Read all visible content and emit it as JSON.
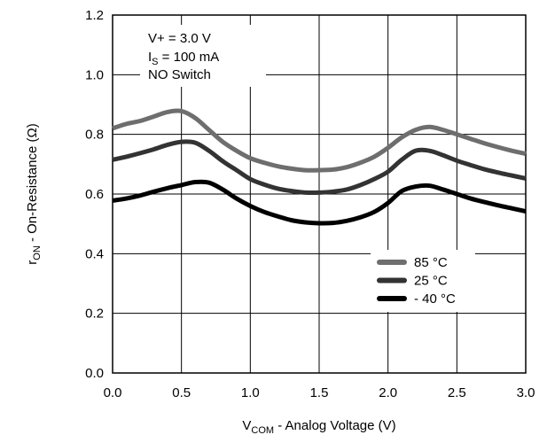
{
  "chart_data": {
    "type": "line",
    "xlabel": {
      "main": "V",
      "sub": "COM",
      "rest": " -  Analog Voltage (V)"
    },
    "ylabel": {
      "main": "r",
      "sub": "ON",
      "rest": " -   On-Resistance (Ω)"
    },
    "xlim": [
      0,
      3.0
    ],
    "ylim": [
      0,
      1.2
    ],
    "xticks": [
      "0.0",
      "0.5",
      "1.0",
      "1.5",
      "2.0",
      "2.5",
      "3.0"
    ],
    "yticks": [
      "0.0",
      "0.2",
      "0.4",
      "0.6",
      "0.8",
      "1.0",
      "1.2"
    ],
    "grid": true,
    "legend_position": "lower-right",
    "annotations": {
      "line1": "V+ = 3.0 V",
      "line2_main": "I",
      "line2_sub": "S",
      "line2_rest": " = 100 mA",
      "line3": "NO Switch"
    },
    "series": [
      {
        "name": "85 °C",
        "color": "#6e6e6e",
        "points": [
          [
            0.0,
            0.82
          ],
          [
            0.1,
            0.835
          ],
          [
            0.2,
            0.845
          ],
          [
            0.3,
            0.86
          ],
          [
            0.4,
            0.875
          ],
          [
            0.5,
            0.878
          ],
          [
            0.6,
            0.855
          ],
          [
            0.7,
            0.815
          ],
          [
            0.8,
            0.775
          ],
          [
            0.9,
            0.745
          ],
          [
            1.0,
            0.72
          ],
          [
            1.1,
            0.705
          ],
          [
            1.2,
            0.693
          ],
          [
            1.3,
            0.685
          ],
          [
            1.4,
            0.68
          ],
          [
            1.5,
            0.68
          ],
          [
            1.6,
            0.682
          ],
          [
            1.7,
            0.69
          ],
          [
            1.8,
            0.705
          ],
          [
            1.9,
            0.725
          ],
          [
            2.0,
            0.755
          ],
          [
            2.1,
            0.79
          ],
          [
            2.2,
            0.815
          ],
          [
            2.3,
            0.825
          ],
          [
            2.4,
            0.815
          ],
          [
            2.5,
            0.8
          ],
          [
            2.6,
            0.785
          ],
          [
            2.7,
            0.77
          ],
          [
            2.8,
            0.757
          ],
          [
            2.9,
            0.745
          ],
          [
            3.0,
            0.735
          ]
        ]
      },
      {
        "name": "25 °C",
        "color": "#333333",
        "points": [
          [
            0.0,
            0.715
          ],
          [
            0.1,
            0.725
          ],
          [
            0.2,
            0.737
          ],
          [
            0.3,
            0.75
          ],
          [
            0.4,
            0.765
          ],
          [
            0.5,
            0.775
          ],
          [
            0.6,
            0.772
          ],
          [
            0.7,
            0.745
          ],
          [
            0.8,
            0.71
          ],
          [
            0.9,
            0.68
          ],
          [
            1.0,
            0.65
          ],
          [
            1.1,
            0.632
          ],
          [
            1.2,
            0.618
          ],
          [
            1.3,
            0.61
          ],
          [
            1.4,
            0.605
          ],
          [
            1.5,
            0.605
          ],
          [
            1.6,
            0.608
          ],
          [
            1.7,
            0.615
          ],
          [
            1.8,
            0.63
          ],
          [
            1.9,
            0.65
          ],
          [
            2.0,
            0.675
          ],
          [
            2.1,
            0.715
          ],
          [
            2.2,
            0.745
          ],
          [
            2.3,
            0.745
          ],
          [
            2.4,
            0.73
          ],
          [
            2.5,
            0.712
          ],
          [
            2.6,
            0.697
          ],
          [
            2.7,
            0.683
          ],
          [
            2.8,
            0.672
          ],
          [
            2.9,
            0.662
          ],
          [
            3.0,
            0.652
          ]
        ]
      },
      {
        "name": "- 40 °C",
        "color": "#000000",
        "points": [
          [
            0.0,
            0.578
          ],
          [
            0.1,
            0.585
          ],
          [
            0.2,
            0.595
          ],
          [
            0.3,
            0.608
          ],
          [
            0.4,
            0.62
          ],
          [
            0.5,
            0.63
          ],
          [
            0.6,
            0.64
          ],
          [
            0.7,
            0.638
          ],
          [
            0.8,
            0.615
          ],
          [
            0.9,
            0.585
          ],
          [
            1.0,
            0.56
          ],
          [
            1.1,
            0.54
          ],
          [
            1.2,
            0.525
          ],
          [
            1.3,
            0.512
          ],
          [
            1.4,
            0.505
          ],
          [
            1.5,
            0.502
          ],
          [
            1.6,
            0.503
          ],
          [
            1.7,
            0.51
          ],
          [
            1.8,
            0.522
          ],
          [
            1.9,
            0.54
          ],
          [
            2.0,
            0.57
          ],
          [
            2.1,
            0.61
          ],
          [
            2.2,
            0.625
          ],
          [
            2.3,
            0.628
          ],
          [
            2.4,
            0.615
          ],
          [
            2.5,
            0.6
          ],
          [
            2.6,
            0.585
          ],
          [
            2.7,
            0.573
          ],
          [
            2.8,
            0.562
          ],
          [
            2.9,
            0.552
          ],
          [
            3.0,
            0.542
          ]
        ]
      }
    ]
  }
}
